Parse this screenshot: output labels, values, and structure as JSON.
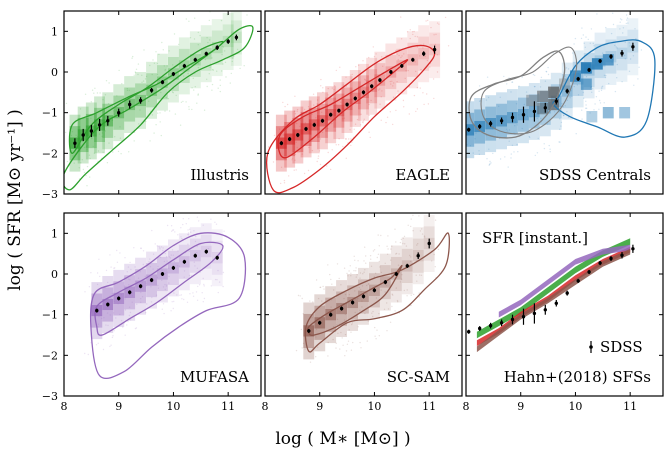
{
  "chart_data": {
    "type": "scatter",
    "xlabel": "log ( M∗  [M⊙] )",
    "ylabel": "log ( SFR [M⊙ yr⁻¹] )",
    "xlim": [
      8,
      11.6
    ],
    "ylim": [
      -3,
      1.5
    ],
    "x_ticks": [
      8,
      9,
      10,
      11
    ],
    "x_tick_labels": [
      "8",
      "9",
      "10",
      "11"
    ],
    "y_ticks": [
      -3,
      -2,
      -1,
      0,
      1
    ],
    "y_tick_labels": [
      "−3",
      "−2",
      "−1",
      "0",
      "1"
    ],
    "sdss_median": {
      "x": [
        8.05,
        8.25,
        8.45,
        8.65,
        8.85,
        9.05,
        9.25,
        9.45,
        9.65,
        9.85,
        10.05,
        10.25,
        10.45,
        10.65,
        10.85,
        11.05
      ],
      "y": [
        -1.42,
        -1.34,
        -1.27,
        -1.2,
        -1.12,
        -1.05,
        -0.97,
        -0.88,
        -0.72,
        -0.47,
        -0.17,
        0.05,
        0.27,
        0.38,
        0.46,
        0.62
      ],
      "err": [
        0.05,
        0.06,
        0.07,
        0.08,
        0.12,
        0.2,
        0.25,
        0.12,
        0.08,
        0.06,
        0.05,
        0.05,
        0.05,
        0.06,
        0.08,
        0.1
      ]
    },
    "panels": [
      {
        "label": "Illustris",
        "color": "#2ca02c",
        "median_x": [
          8.2,
          8.35,
          8.5,
          8.65,
          8.8,
          9.0,
          9.2,
          9.4,
          9.6,
          9.8,
          10.0,
          10.2,
          10.4,
          10.6,
          10.8,
          11.0,
          11.15
        ],
        "median_y": [
          -1.75,
          -1.55,
          -1.45,
          -1.3,
          -1.2,
          -1.0,
          -0.8,
          -0.7,
          -0.45,
          -0.25,
          -0.05,
          0.15,
          0.3,
          0.45,
          0.6,
          0.75,
          0.85
        ],
        "median_err": [
          0.12,
          0.15,
          0.15,
          0.15,
          0.12,
          0.1,
          0.1,
          0.08,
          0.06,
          0.05,
          0.05,
          0.05,
          0.05,
          0.05,
          0.06,
          0.06,
          0.07
        ],
        "outer_contour_x": [
          8.0,
          8.6,
          9.2,
          9.8,
          10.3,
          10.8,
          11.2,
          11.45,
          11.3,
          10.9,
          10.4,
          9.9,
          9.4,
          8.9,
          8.4,
          8.1
        ],
        "outer_contour_y": [
          -2.5,
          -1.4,
          -0.9,
          -0.4,
          0.1,
          0.6,
          1.05,
          1.1,
          0.6,
          0.3,
          0.0,
          -0.5,
          -1.3,
          -1.9,
          -2.5,
          -2.9
        ],
        "inner_contour_x": [
          8.15,
          8.6,
          9.2,
          9.7,
          10.2,
          10.7,
          10.9,
          10.5,
          10.0,
          9.5,
          9.0,
          8.5,
          8.15
        ],
        "inner_contour_y": [
          -1.3,
          -1.0,
          -0.6,
          -0.3,
          0.1,
          0.5,
          0.75,
          0.55,
          0.1,
          -0.4,
          -0.8,
          -1.3,
          -2.0
        ]
      },
      {
        "label": "EAGLE",
        "color": "#d62728",
        "median_x": [
          8.3,
          8.45,
          8.6,
          8.75,
          8.9,
          9.05,
          9.2,
          9.35,
          9.5,
          9.65,
          9.8,
          9.95,
          10.1,
          10.3,
          10.5,
          10.7,
          10.9,
          11.1
        ],
        "median_y": [
          -1.75,
          -1.65,
          -1.55,
          -1.4,
          -1.3,
          -1.2,
          -1.05,
          -0.95,
          -0.8,
          -0.65,
          -0.5,
          -0.35,
          -0.2,
          0.0,
          0.15,
          0.3,
          0.45,
          0.55
        ],
        "median_err": [
          0.05,
          0.05,
          0.05,
          0.05,
          0.05,
          0.05,
          0.05,
          0.05,
          0.05,
          0.05,
          0.05,
          0.05,
          0.05,
          0.05,
          0.05,
          0.05,
          0.06,
          0.1
        ],
        "outer_contour_x": [
          8.05,
          8.5,
          9.0,
          9.5,
          10.0,
          10.5,
          10.9,
          11.1,
          10.9,
          10.5,
          10.0,
          9.5,
          9.0,
          8.5,
          8.15
        ],
        "outer_contour_y": [
          -2.0,
          -1.2,
          -0.8,
          -0.3,
          0.2,
          0.55,
          0.65,
          0.45,
          0.05,
          -0.5,
          -1.1,
          -1.8,
          -2.4,
          -2.85,
          -2.9
        ],
        "inner_contour_x": [
          8.3,
          8.7,
          9.2,
          9.7,
          10.2,
          10.6,
          10.4,
          9.9,
          9.4,
          8.9,
          8.4,
          8.25
        ],
        "inner_contour_y": [
          -1.5,
          -1.1,
          -0.8,
          -0.4,
          0.0,
          0.3,
          0.05,
          -0.5,
          -1.0,
          -1.6,
          -2.1,
          -1.9
        ]
      },
      {
        "label": "SDSS Centrals",
        "color": "#1f77b4",
        "median_x": [
          8.05,
          8.25,
          8.45,
          8.65,
          8.85,
          9.05,
          9.25,
          9.45,
          9.65,
          9.85,
          10.05,
          10.25,
          10.45,
          10.65,
          10.85,
          11.05
        ],
        "median_y": [
          -1.42,
          -1.34,
          -1.27,
          -1.2,
          -1.12,
          -1.05,
          -0.97,
          -0.88,
          -0.72,
          -0.47,
          -0.17,
          0.05,
          0.27,
          0.38,
          0.46,
          0.62
        ],
        "median_err": [
          0.05,
          0.06,
          0.07,
          0.08,
          0.12,
          0.2,
          0.25,
          0.12,
          0.08,
          0.06,
          0.05,
          0.05,
          0.05,
          0.06,
          0.08,
          0.1
        ],
        "outer_contour_x": [
          9.7,
          10.0,
          10.4,
          10.8,
          11.2,
          11.45,
          11.3,
          10.9,
          10.4,
          9.9,
          9.6
        ],
        "outer_contour_y": [
          -0.6,
          0.15,
          0.6,
          0.75,
          0.75,
          0.3,
          -1.2,
          -1.6,
          -1.35,
          -1.1,
          -0.8
        ],
        "inner_contour_x": [
          8.1,
          8.5,
          9.0,
          9.4,
          9.7,
          9.8,
          9.6,
          9.3,
          8.9,
          8.4,
          8.1
        ],
        "inner_contour_y": [
          -0.6,
          -0.3,
          -0.1,
          0.35,
          0.5,
          0.0,
          -0.8,
          -1.3,
          -1.6,
          -1.55,
          -1.2
        ]
      },
      {
        "label": "MUFASA",
        "color": "#9467bd",
        "median_x": [
          8.6,
          8.8,
          9.0,
          9.2,
          9.4,
          9.6,
          9.8,
          10.0,
          10.2,
          10.4,
          10.6,
          10.8
        ],
        "median_y": [
          -0.9,
          -0.75,
          -0.6,
          -0.45,
          -0.3,
          -0.15,
          0.0,
          0.15,
          0.3,
          0.45,
          0.55,
          0.4
        ],
        "median_err": [
          0.05,
          0.05,
          0.05,
          0.05,
          0.05,
          0.05,
          0.05,
          0.05,
          0.05,
          0.05,
          0.05,
          0.05
        ],
        "outer_contour_x": [
          8.55,
          9.0,
          9.5,
          10.0,
          10.5,
          11.0,
          11.3,
          11.2,
          10.6,
          10.1,
          9.6,
          9.1,
          8.65,
          8.5
        ],
        "outer_contour_y": [
          -0.5,
          -0.2,
          0.2,
          0.7,
          1.0,
          0.9,
          0.4,
          -0.6,
          -0.9,
          -1.3,
          -1.8,
          -2.4,
          -2.5,
          -1.5
        ],
        "inner_contour_x": [
          8.6,
          9.0,
          9.5,
          10.0,
          10.5,
          10.9,
          10.7,
          10.2,
          9.7,
          9.2,
          8.7,
          8.6
        ],
        "inner_contour_y": [
          -0.8,
          -0.45,
          -0.1,
          0.35,
          0.75,
          0.7,
          0.3,
          -0.2,
          -0.7,
          -1.1,
          -1.5,
          -1.3
        ]
      },
      {
        "label": "SC-SAM",
        "color": "#8c564b",
        "median_x": [
          8.8,
          9.0,
          9.2,
          9.4,
          9.6,
          9.8,
          10.0,
          10.2,
          10.4,
          10.6,
          10.8,
          11.0
        ],
        "median_y": [
          -1.4,
          -1.2,
          -1.0,
          -0.85,
          -0.7,
          -0.55,
          -0.4,
          -0.2,
          0.0,
          0.2,
          0.45,
          0.75
        ],
        "median_err": [
          0.05,
          0.05,
          0.05,
          0.05,
          0.05,
          0.05,
          0.05,
          0.05,
          0.05,
          0.05,
          0.08,
          0.12
        ],
        "outer_contour_x": [
          8.75,
          9.0,
          9.5,
          10.0,
          10.5,
          11.1,
          11.35,
          11.3,
          10.9,
          10.5,
          10.0,
          9.5,
          9.0,
          8.8
        ],
        "outer_contour_y": [
          -1.3,
          -0.8,
          -0.4,
          -0.1,
          0.1,
          0.6,
          1.0,
          0.2,
          -0.4,
          -0.9,
          -1.1,
          -1.2,
          -1.7,
          -1.9
        ],
        "inner_contour_x": [
          8.8,
          9.1,
          9.5,
          9.9,
          10.3,
          10.5,
          10.2,
          9.8,
          9.3,
          8.9,
          8.8
        ],
        "inner_contour_y": [
          -1.3,
          -1.0,
          -0.7,
          -0.4,
          -0.1,
          0.2,
          -0.5,
          -0.9,
          -1.3,
          -1.5,
          -1.45
        ]
      },
      {
        "label": "Hahn+(2018) SFSs",
        "color": "#000000",
        "median_x": [
          8.05,
          8.25,
          8.45,
          8.65,
          8.85,
          9.05,
          9.25,
          9.45,
          9.65,
          9.85,
          10.05,
          10.25,
          10.45,
          10.65,
          10.85,
          11.05
        ],
        "median_y": [
          -1.42,
          -1.34,
          -1.27,
          -1.2,
          -1.12,
          -1.05,
          -0.97,
          -0.88,
          -0.72,
          -0.47,
          -0.17,
          0.05,
          0.27,
          0.38,
          0.46,
          0.62
        ],
        "median_err": [
          0.05,
          0.06,
          0.07,
          0.08,
          0.12,
          0.2,
          0.25,
          0.12,
          0.08,
          0.06,
          0.05,
          0.05,
          0.05,
          0.06,
          0.08,
          0.1
        ],
        "annotation": "SFR [instant.]",
        "legend_label": "SDSS",
        "sfs_bands": [
          {
            "name": "Illustris",
            "color": "#2ca02c",
            "x": [
              8.2,
              8.6,
              9.0,
              9.5,
              10.0,
              10.5,
              11.0
            ],
            "y": [
              -1.5,
              -1.2,
              -0.9,
              -0.4,
              0.1,
              0.5,
              0.8
            ],
            "width": 0.08
          },
          {
            "name": "EAGLE",
            "color": "#d62728",
            "x": [
              8.2,
              8.6,
              9.0,
              9.5,
              10.0,
              10.5,
              11.0
            ],
            "y": [
              -1.7,
              -1.4,
              -1.0,
              -0.6,
              -0.1,
              0.3,
              0.6
            ],
            "width": 0.07
          },
          {
            "name": "MUFASA",
            "color": "#9467bd",
            "x": [
              8.6,
              9.0,
              9.5,
              10.0,
              10.5,
              11.0
            ],
            "y": [
              -1.0,
              -0.7,
              -0.2,
              0.3,
              0.55,
              0.65
            ],
            "width": 0.07
          },
          {
            "name": "SC-SAM",
            "color": "#8c564b",
            "x": [
              8.2,
              8.6,
              9.0,
              9.5,
              10.0,
              10.5,
              11.0
            ],
            "y": [
              -1.85,
              -1.45,
              -1.05,
              -0.65,
              -0.2,
              0.25,
              0.55
            ],
            "width": 0.07
          }
        ]
      }
    ]
  }
}
